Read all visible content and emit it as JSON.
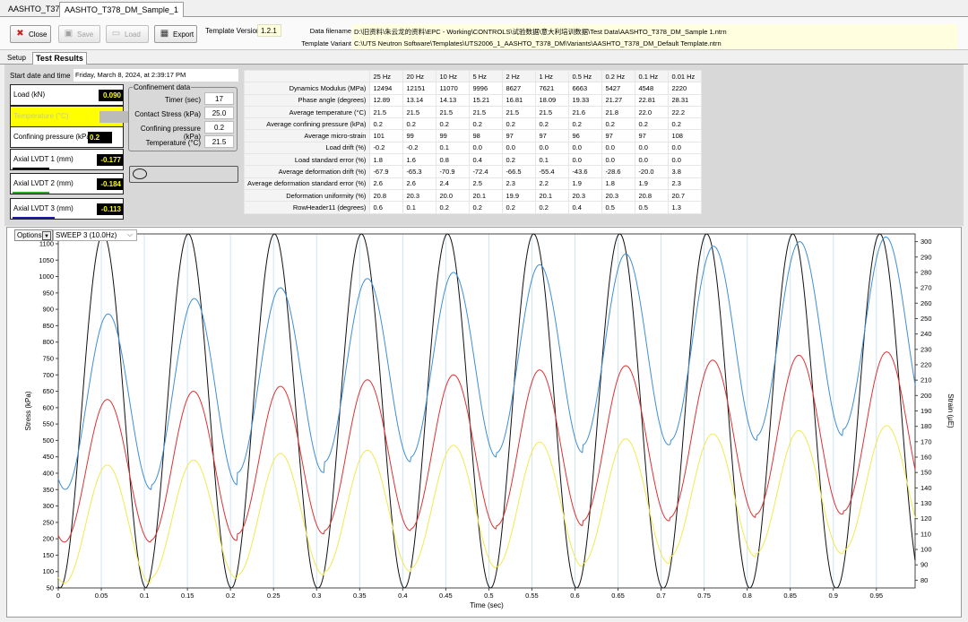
{
  "top_tabs": [
    "AASHTO_T378",
    "AASHTO_T378_DM_Sample_1"
  ],
  "toolbar": {
    "close": "Close",
    "save": "Save",
    "load": "Load",
    "export": "Export",
    "template_version_label": "Template Version",
    "template_version": "1.2.1",
    "data_filename_label": "Data filename",
    "data_filename": "D:\\旧资料\\朱云龙的资料\\EPC - Working\\CONTROLS\\试验数据\\意大利培训数据\\Test Data\\AASHTO_T378_DM_Sample 1.ntrn",
    "template_variant_label": "Template Variant",
    "template_variant": "C:\\UTS Neutron Software\\Templates\\UTS2006_1_AASHTO_T378_DM\\Variants\\AASHTO_T378_DM_Default Template.ntrn"
  },
  "sub_tabs": [
    "Setup",
    "Test Results"
  ],
  "start_date_label": "Start date and time",
  "start_date": "Friday, March 8, 2024, at 2:39:17 PM",
  "sensors": [
    {
      "label": "Load (kN)",
      "value": "0.090",
      "bar_color": "",
      "bar_fraction": 0
    },
    {
      "label": "Temperature (°C)",
      "value": "",
      "bar_color": "",
      "bar_fraction": 0
    },
    {
      "label": "Confining pressure (kPa)",
      "value": "0.2",
      "bar_color": "",
      "bar_fraction": 0
    },
    {
      "label": "Axial LVDT 1 (mm)",
      "value": "-0.177",
      "bar_color": "#000000",
      "bar_fraction": 0.33
    },
    {
      "label": "Axial LVDT 2 (mm)",
      "value": "-0.184",
      "bar_color": "#22aa22",
      "bar_fraction": 0.33
    },
    {
      "label": "Axial LVDT 3 (mm)",
      "value": "-0.113",
      "bar_color": "#1a1aa8",
      "bar_fraction": 0.38
    }
  ],
  "confinement": {
    "title": "Confinement data",
    "rows": [
      {
        "label": "Timer (sec)",
        "value": "17"
      },
      {
        "label": "Contact Stress (kPa)",
        "value": "25.0"
      },
      {
        "label": "Confining pressure (kPa)",
        "value": "0.2"
      },
      {
        "label": "Temperature (°C)",
        "value": "21.5"
      }
    ]
  },
  "results": {
    "columns": [
      "25 Hz",
      "20 Hz",
      "10 Hz",
      "5 Hz",
      "2 Hz",
      "1 Hz",
      "0.5 Hz",
      "0.2 Hz",
      "0.1 Hz",
      "0.01 Hz"
    ],
    "rows": [
      {
        "label": "Dynamics Modulus (MPa)",
        "values": [
          "12494",
          "12151",
          "11070",
          "9996",
          "8627",
          "7621",
          "6663",
          "5427",
          "4548",
          "2220"
        ]
      },
      {
        "label": "Phase angle (degrees)",
        "values": [
          "12.89",
          "13.14",
          "14.13",
          "15.21",
          "16.81",
          "18.09",
          "19.33",
          "21.27",
          "22.81",
          "28.31"
        ]
      },
      {
        "label": "Average temperature (°C)",
        "values": [
          "21.5",
          "21.5",
          "21.5",
          "21.5",
          "21.5",
          "21.5",
          "21.6",
          "21.8",
          "22.0",
          "22.2"
        ]
      },
      {
        "label": "Average confining pressure (kPa)",
        "values": [
          "0.2",
          "0.2",
          "0.2",
          "0.2",
          "0.2",
          "0.2",
          "0.2",
          "0.2",
          "0.2",
          "0.2"
        ]
      },
      {
        "label": "Average micro-strain",
        "values": [
          "101",
          "99",
          "99",
          "98",
          "97",
          "97",
          "96",
          "97",
          "97",
          "108"
        ]
      },
      {
        "label": "Load drift (%)",
        "values": [
          "-0.2",
          "-0.2",
          "0.1",
          "0.0",
          "0.0",
          "0.0",
          "0.0",
          "0.0",
          "0.0",
          "0.0"
        ]
      },
      {
        "label": "Load standard error (%)",
        "values": [
          "1.8",
          "1.6",
          "0.8",
          "0.4",
          "0.2",
          "0.1",
          "0.0",
          "0.0",
          "0.0",
          "0.0"
        ]
      },
      {
        "label": "Average deformation drift (%)",
        "values": [
          "-67.9",
          "-65.3",
          "-70.9",
          "-72.4",
          "-66.5",
          "-55.4",
          "-43.6",
          "-28.6",
          "-20.0",
          "3.8"
        ]
      },
      {
        "label": "Average deformation standard error (%)",
        "values": [
          "2.6",
          "2.6",
          "2.4",
          "2.5",
          "2.3",
          "2.2",
          "1.9",
          "1.8",
          "1.9",
          "2.3"
        ]
      },
      {
        "label": "Deformation uniformity (%)",
        "values": [
          "20.8",
          "20.3",
          "20.0",
          "20.1",
          "19.9",
          "20.1",
          "20.3",
          "20.3",
          "20.8",
          "20.7"
        ]
      },
      {
        "label": "RowHeader11 (degrees)",
        "values": [
          "0.6",
          "0.1",
          "0.2",
          "0.2",
          "0.2",
          "0.2",
          "0.4",
          "0.5",
          "0.5",
          "1.3"
        ]
      }
    ]
  },
  "chart_controls": {
    "options_label": "Options",
    "sweep_selected": "SWEEP 3 (10.0Hz)"
  },
  "chart_data": {
    "type": "line",
    "xlabel": "Time (sec)",
    "ylabel": "Stress (kPa)",
    "y2label": "Strain (µE)",
    "xlim": [
      0,
      0.995
    ],
    "ylim": [
      50,
      1130
    ],
    "y2lim": [
      75,
      305
    ],
    "x_ticks": [
      "0",
      "0.05",
      "0.1",
      "0.15",
      "0.2",
      "0.25",
      "0.3",
      "0.35",
      "0.4",
      "0.45",
      "0.5",
      "0.55",
      "0.6",
      "0.65",
      "0.7",
      "0.75",
      "0.8",
      "0.85",
      "0.9",
      "0.95"
    ],
    "y_ticks": [
      "50",
      "100",
      "150",
      "200",
      "250",
      "300",
      "350",
      "400",
      "450",
      "500",
      "550",
      "600",
      "650",
      "700",
      "750",
      "800",
      "850",
      "900",
      "950",
      "1000",
      "1050",
      "1100"
    ],
    "y2_ticks": [
      "80",
      "90",
      "100",
      "110",
      "120",
      "130",
      "140",
      "150",
      "160",
      "170",
      "180",
      "190",
      "200",
      "210",
      "220",
      "230",
      "240",
      "250",
      "260",
      "270",
      "280",
      "290",
      "300"
    ],
    "frequency_hz": 10,
    "series": [
      {
        "color": "#111111",
        "axis": "left",
        "peak_times": [
          0.052,
          0.151,
          0.251,
          0.352,
          0.452,
          0.552,
          0.652,
          0.753,
          0.853,
          0.954
        ],
        "peaks": [
          1130,
          1130,
          1130,
          1130,
          1130,
          1130,
          1130,
          1130,
          1130,
          1130
        ],
        "troughs": [
          50,
          50,
          50,
          50,
          50,
          50,
          50,
          50,
          50,
          50
        ]
      },
      {
        "color": "#3d8fd6",
        "axis": "right",
        "peak_times": [
          0.058,
          0.158,
          0.258,
          0.359,
          0.459,
          0.559,
          0.659,
          0.761,
          0.861,
          0.961
        ],
        "peaks": [
          253,
          263,
          270,
          276,
          280,
          285,
          292,
          297,
          300,
          303
        ],
        "troughs": [
          139,
          142,
          150,
          157,
          160,
          163,
          168,
          171,
          174,
          178
        ]
      },
      {
        "color": "#e03030",
        "axis": "left",
        "peak_times": [
          0.057,
          0.157,
          0.258,
          0.359,
          0.459,
          0.559,
          0.659,
          0.76,
          0.86,
          0.962
        ],
        "peaks": [
          625,
          650,
          665,
          685,
          700,
          715,
          728,
          745,
          760,
          770
        ],
        "troughs": [
          190,
          195,
          215,
          225,
          230,
          240,
          255,
          265,
          275,
          285
        ]
      },
      {
        "color": "#f0ea50",
        "axis": "left",
        "peak_times": [
          0.057,
          0.157,
          0.258,
          0.359,
          0.459,
          0.559,
          0.659,
          0.76,
          0.86,
          0.962
        ],
        "peaks": [
          425,
          440,
          460,
          470,
          485,
          495,
          505,
          520,
          530,
          545
        ],
        "troughs": [
          65,
          80,
          90,
          100,
          110,
          115,
          125,
          145,
          155,
          165
        ]
      }
    ]
  }
}
